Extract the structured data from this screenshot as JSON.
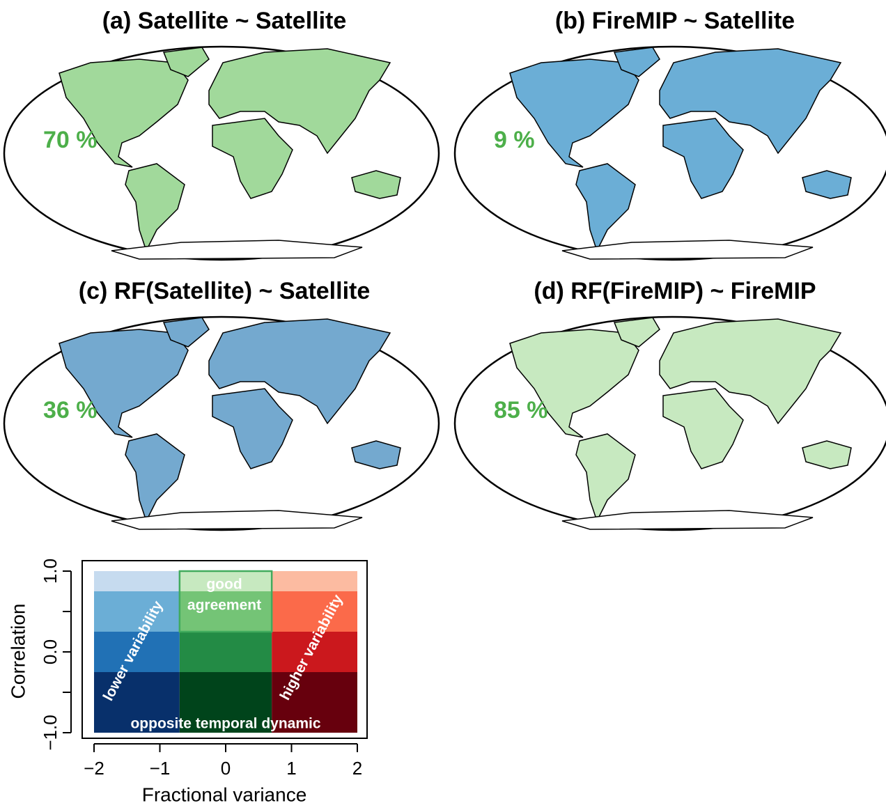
{
  "chart_data": [
    {
      "type": "map",
      "title": "(a) Satellite ~ Satellite",
      "annotation": "70 %",
      "land_color": "#a1d99b"
    },
    {
      "type": "map",
      "title": "(b) FireMIP ~ Satellite",
      "annotation": "9 %",
      "land_color": "#6baed6"
    },
    {
      "type": "map",
      "title": "(c) RF(Satellite) ~ Satellite",
      "annotation": "36 %",
      "land_color": "#74a9cf"
    },
    {
      "type": "map",
      "title": "(d) RF(FireMIP) ~ FireMIP",
      "annotation": "85 %",
      "land_color": "#c7e9c0"
    },
    {
      "type": "heatmap",
      "xlabel": "Fractional variance",
      "ylabel": "Correlation",
      "xlim": [
        -2,
        2
      ],
      "ylim": [
        -1,
        1
      ],
      "xticks": [
        {
          "value": -2,
          "label": "−2"
        },
        {
          "value": -1,
          "label": "−1"
        },
        0,
        1,
        2
      ],
      "yticks": [
        {
          "value": -1,
          "label": "−1.0"
        },
        {
          "value": 0,
          "label": "0.0"
        },
        {
          "value": 1,
          "label": "1.0"
        }
      ],
      "yminor_ticks": [
        -0.5,
        0.5
      ],
      "xbins": [
        -2,
        -0.7,
        0.7,
        2
      ],
      "ybins": [
        -1,
        -0.25,
        0.25,
        0.75,
        1
      ],
      "colors": [
        [
          "#08306b",
          "#00441b",
          "#67000d"
        ],
        [
          "#2171b5",
          "#238b45",
          "#cb181d"
        ],
        [
          "#6baed6",
          "#74c476",
          "#fb6a4a"
        ],
        [
          "#c6dbef",
          "#c7e9c0",
          "#fcbba1"
        ]
      ],
      "highlight_color": "#41ab5d",
      "annotations": [
        "good",
        "agreement",
        "lower variability",
        "higher variability",
        "opposite temporal dynamic"
      ]
    }
  ]
}
